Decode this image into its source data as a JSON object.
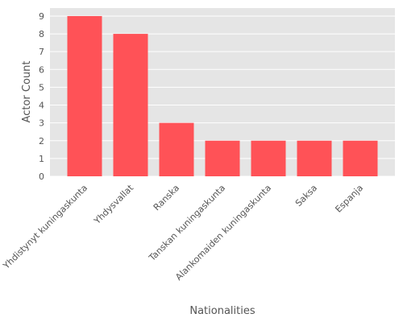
{
  "chart_data": {
    "type": "bar",
    "title": "",
    "xlabel": "Nationalities",
    "ylabel": "Actor Count",
    "categories": [
      "Yhdistynyt kuningaskunta",
      "Yhdysvallat",
      "Ranska",
      "Tanskan kuningaskunta",
      "Alankomaiden kuningaskunta",
      "Saksa",
      "Espanja"
    ],
    "values": [
      9,
      8,
      3,
      2,
      2,
      2,
      2
    ],
    "ylim": [
      0,
      9.45
    ],
    "yticks": [
      "0",
      "1",
      "2",
      "3",
      "4",
      "5",
      "6",
      "7",
      "8",
      "9"
    ],
    "grid": true,
    "legend": "none",
    "colors": {
      "bar": "#FF5257",
      "plot_background": "#E5E5E5",
      "grid": "#FFFFFF",
      "text": "#555555"
    }
  }
}
